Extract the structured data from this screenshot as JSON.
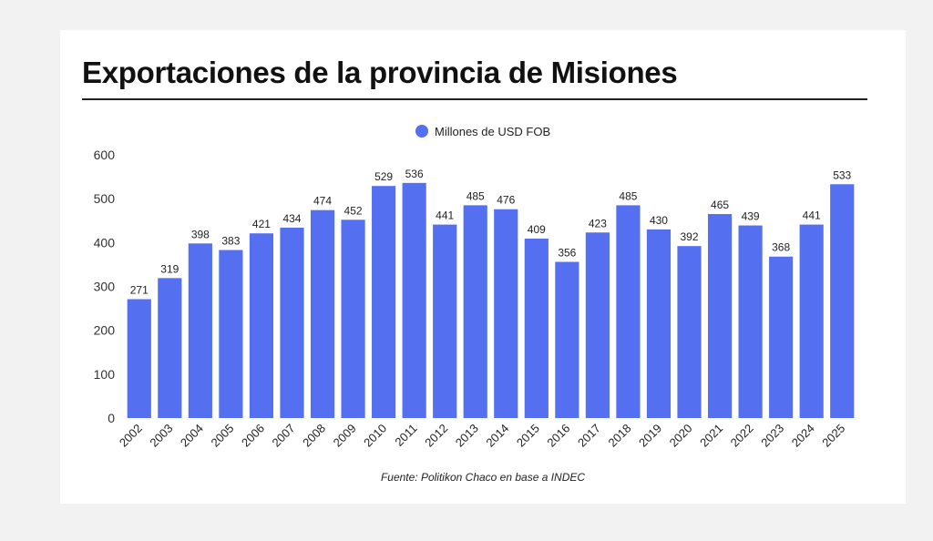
{
  "title": "Exportaciones de la provincia de Misiones",
  "source": "Fuente: Politikon Chaco en base a INDEC",
  "colors": {
    "bar": "#5470f0"
  },
  "chart_data": {
    "type": "bar",
    "title": "Exportaciones de la provincia de Misiones",
    "legend": {
      "position": "top-center",
      "entries": [
        "Millones de USD FOB"
      ]
    },
    "categories": [
      "2002",
      "2003",
      "2004",
      "2005",
      "2006",
      "2007",
      "2008",
      "2009",
      "2010",
      "2011",
      "2012",
      "2013",
      "2014",
      "2015",
      "2016",
      "2017",
      "2018",
      "2019",
      "2020",
      "2021",
      "2022",
      "2023",
      "2024",
      "2025"
    ],
    "series": [
      {
        "name": "Millones de USD FOB",
        "values": [
          271,
          319,
          398,
          383,
          421,
          434,
          474,
          452,
          529,
          536,
          441,
          485,
          476,
          409,
          356,
          423,
          485,
          430,
          392,
          465,
          439,
          368,
          441,
          533
        ]
      }
    ],
    "ylim": [
      0,
      600
    ],
    "yticks": [
      0,
      100,
      200,
      300,
      400,
      500,
      600
    ],
    "grid": false,
    "data_labels": true,
    "xlabel": "",
    "ylabel": ""
  }
}
